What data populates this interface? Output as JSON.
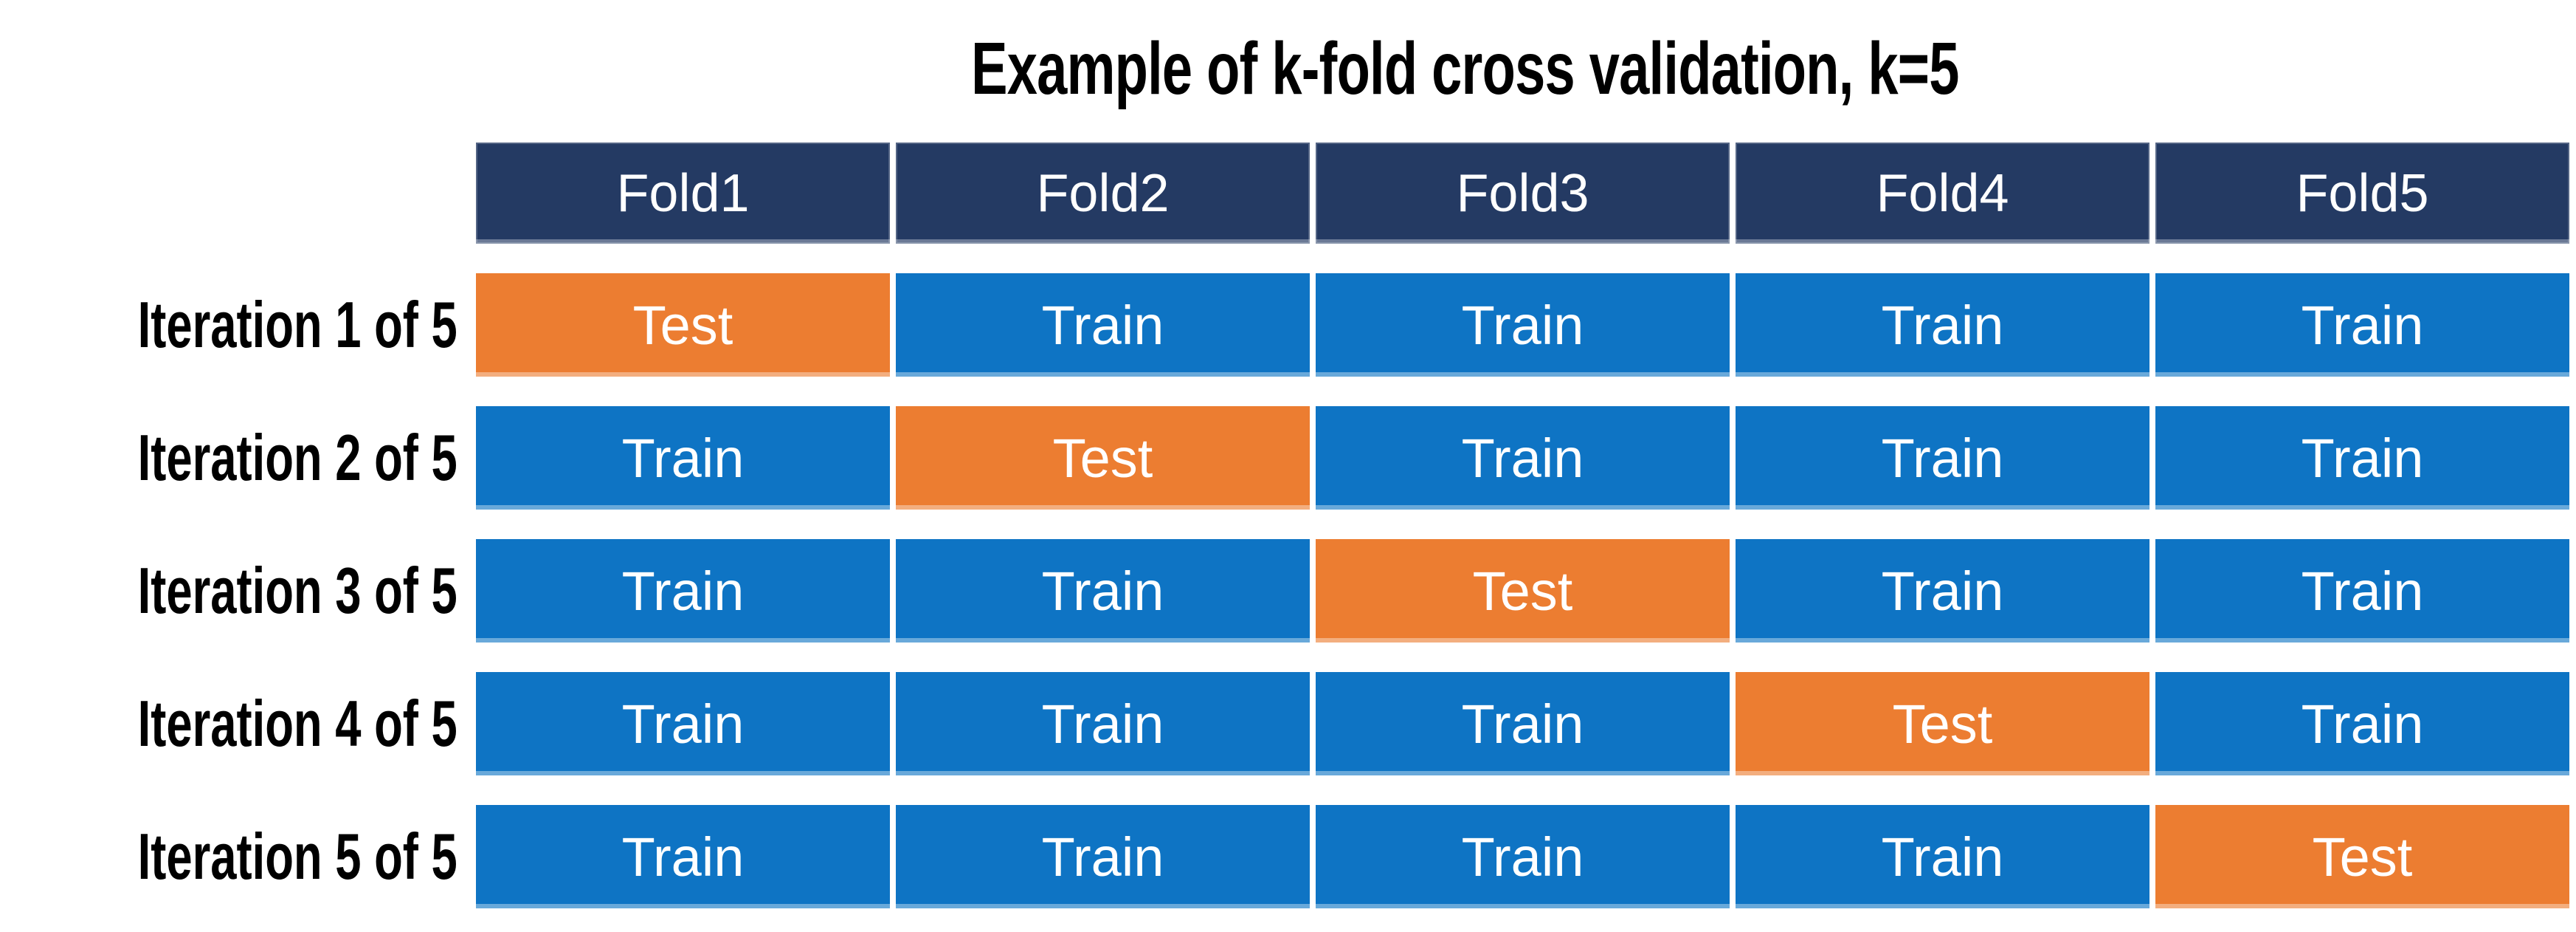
{
  "title": "Example of k-fold cross validation, k=5",
  "colors": {
    "page_bg": "#FFFFFF",
    "header_bg": "#243A63",
    "train_bg": "#0E74C4",
    "test_bg": "#EC7D31",
    "cell_text": "#FFFFFF",
    "label_text": "#000000",
    "title_text": "#000000"
  },
  "table": {
    "fold_headers": [
      "Fold1",
      "Fold2",
      "Fold3",
      "Fold4",
      "Fold5"
    ],
    "rows": [
      {
        "label": "Iteration 1 of 5",
        "cells": [
          "Test",
          "Train",
          "Train",
          "Train",
          "Train"
        ]
      },
      {
        "label": "Iteration 2 of 5",
        "cells": [
          "Train",
          "Test",
          "Train",
          "Train",
          "Train"
        ]
      },
      {
        "label": "Iteration 3 of 5",
        "cells": [
          "Train",
          "Train",
          "Test",
          "Train",
          "Train"
        ]
      },
      {
        "label": "Iteration 4 of 5",
        "cells": [
          "Train",
          "Train",
          "Train",
          "Test",
          "Train"
        ]
      },
      {
        "label": "Iteration 5 of 5",
        "cells": [
          "Train",
          "Train",
          "Train",
          "Train",
          "Test"
        ]
      }
    ]
  }
}
